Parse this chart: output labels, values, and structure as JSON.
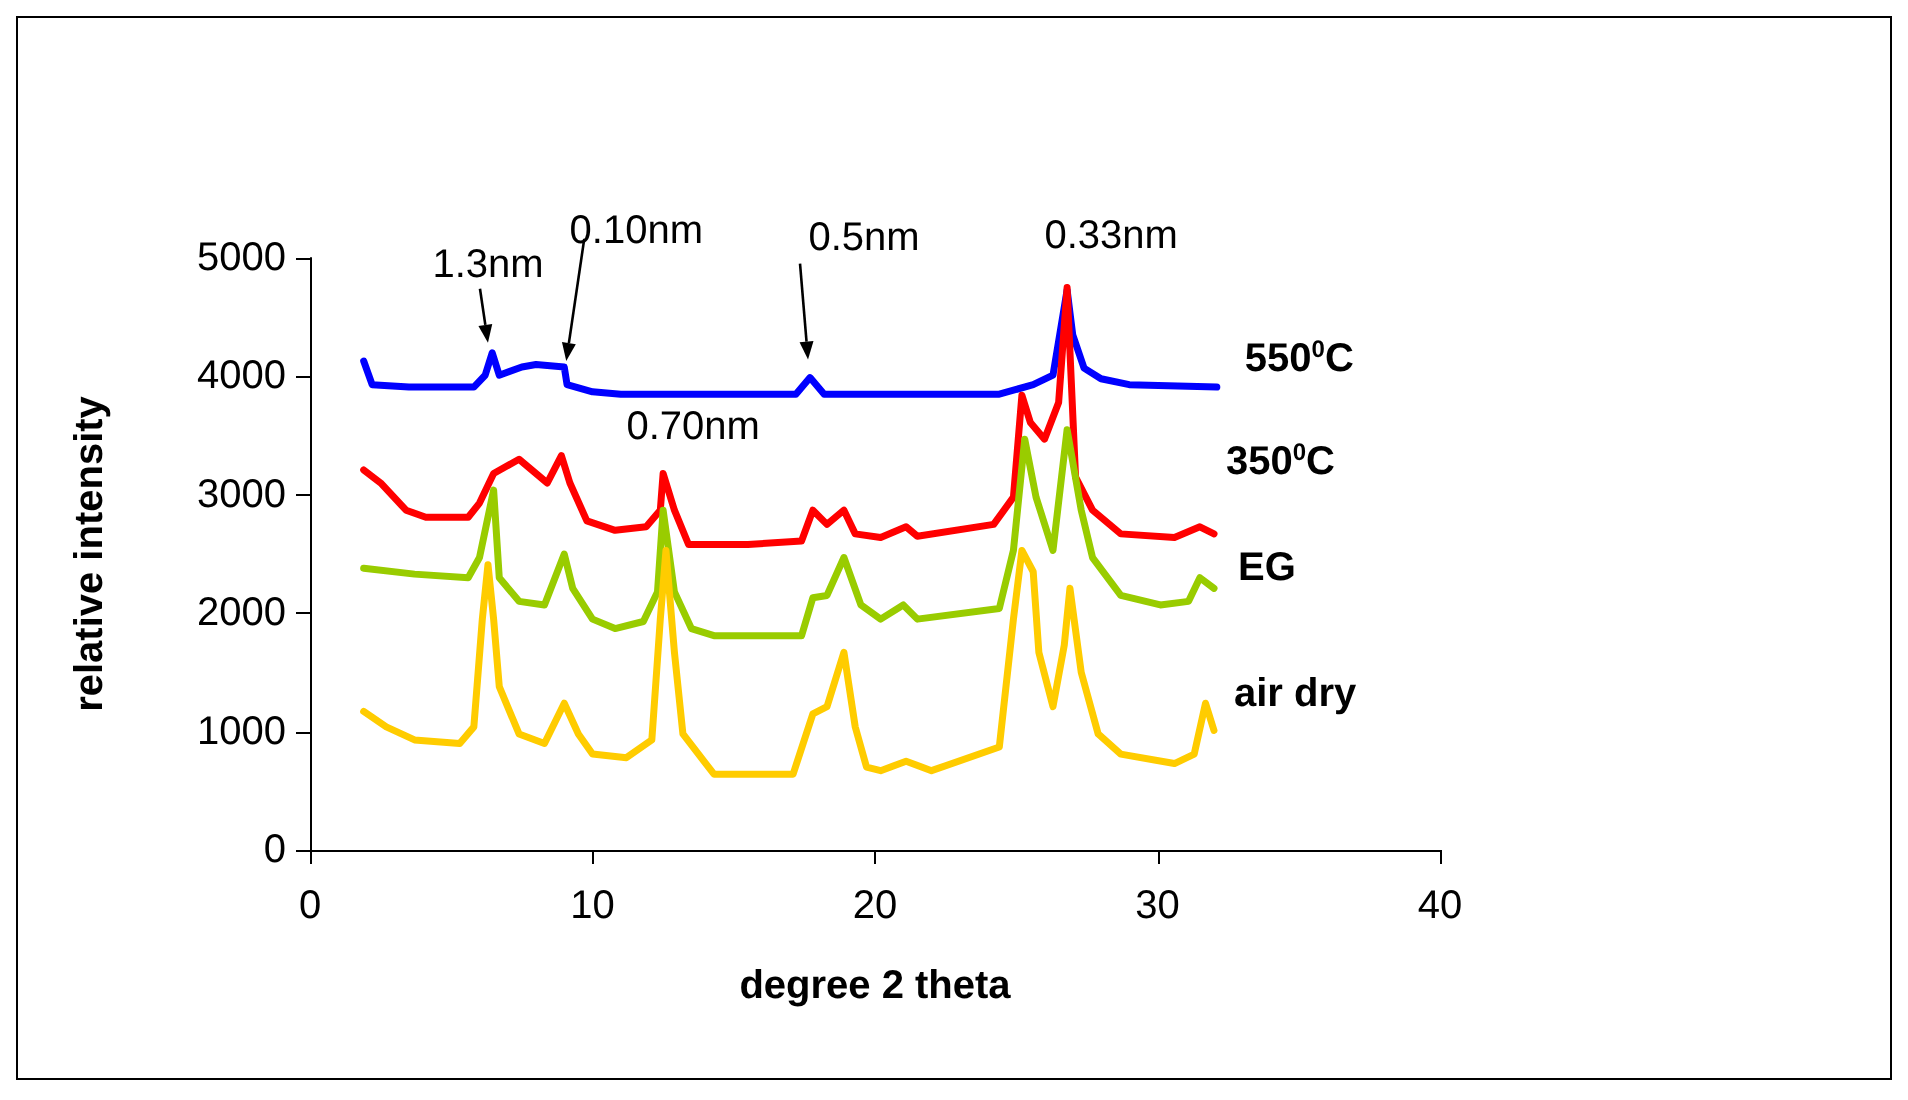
{
  "chart_data": {
    "type": "line",
    "xlabel": "degree 2 theta",
    "ylabel": "relative intensity",
    "xlim": [
      0,
      40
    ],
    "xticks": [
      0,
      10,
      20,
      30,
      40
    ],
    "ylim": [
      0,
      5000
    ],
    "yticks": [
      0,
      1000,
      2000,
      3000,
      4000,
      5000
    ],
    "grid": false,
    "legend": false,
    "marker": "none",
    "line_style": "solid",
    "annotations": [
      {
        "text": "1.3nm",
        "x": 6.3,
        "y": 4200
      },
      {
        "text": "0.10nm",
        "x": 9.0,
        "y": 4080
      },
      {
        "text": "0.5nm",
        "x": 17.7,
        "y": 3990
      },
      {
        "text": "0.33nm",
        "x": 26.8,
        "y": 4730
      },
      {
        "text": "0.70nm",
        "x": 12.5,
        "y": 3180
      }
    ],
    "series": [
      {
        "name": "550$^{0}$C",
        "color": "#0000ff",
        "x": [
          1.9,
          2.2,
          3.5,
          5.8,
          6.2,
          6.45,
          6.7,
          7.5,
          8.0,
          9.0,
          9.1,
          10.0,
          11.0,
          17.2,
          17.7,
          18.2,
          20.0,
          24.4,
          25.6,
          26.3,
          26.8,
          27.0,
          27.4,
          28.0,
          29.0,
          32.1
        ],
        "values": [
          4130,
          3930,
          3910,
          3910,
          4010,
          4200,
          4010,
          4080,
          4100,
          4080,
          3930,
          3870,
          3850,
          3850,
          3990,
          3850,
          3850,
          3850,
          3930,
          4010,
          4730,
          4350,
          4070,
          3980,
          3930,
          3910
        ]
      },
      {
        "name": "350$^{0}$C",
        "color": "#ff0000",
        "x": [
          1.9,
          2.5,
          3.4,
          4.1,
          5.6,
          6.0,
          6.5,
          7.4,
          8.4,
          8.9,
          9.2,
          9.8,
          10.8,
          11.9,
          12.4,
          12.5,
          12.9,
          13.4,
          15.5,
          17.4,
          17.8,
          18.3,
          18.9,
          19.3,
          20.2,
          21.1,
          21.5,
          24.2,
          24.9,
          25.2,
          25.5,
          26.0,
          26.5,
          26.8,
          27.1,
          27.7,
          28.7,
          30.6,
          31.5,
          32.0
        ],
        "values": [
          3210,
          3100,
          2870,
          2810,
          2810,
          2930,
          3180,
          3300,
          3100,
          3330,
          3100,
          2780,
          2700,
          2730,
          2870,
          3180,
          2870,
          2580,
          2580,
          2610,
          2870,
          2750,
          2870,
          2670,
          2640,
          2730,
          2650,
          2750,
          2980,
          3840,
          3610,
          3470,
          3780,
          4750,
          3150,
          2870,
          2670,
          2640,
          2730,
          2670
        ]
      },
      {
        "name": "EG",
        "color": "#99cc00",
        "x": [
          1.9,
          3.7,
          5.6,
          6.0,
          6.5,
          6.7,
          7.4,
          8.3,
          9.0,
          9.3,
          10.0,
          10.8,
          11.8,
          12.3,
          12.5,
          12.9,
          13.5,
          14.3,
          17.4,
          17.8,
          18.3,
          18.9,
          19.5,
          20.2,
          21.0,
          21.5,
          24.4,
          24.9,
          25.3,
          25.7,
          26.3,
          26.8,
          27.3,
          27.7,
          28.7,
          30.1,
          31.1,
          31.5,
          32.0
        ],
        "values": [
          2380,
          2330,
          2300,
          2470,
          3040,
          2300,
          2100,
          2070,
          2500,
          2210,
          1950,
          1870,
          1930,
          2180,
          2870,
          2180,
          1870,
          1810,
          1810,
          2130,
          2150,
          2470,
          2070,
          1950,
          2070,
          1950,
          2040,
          2530,
          3470,
          2980,
          2530,
          3550,
          2870,
          2470,
          2150,
          2070,
          2100,
          2300,
          2210
        ]
      },
      {
        "name": "air dry",
        "color": "#ffcc00",
        "x": [
          1.9,
          2.7,
          3.7,
          5.3,
          5.8,
          6.1,
          6.3,
          6.5,
          6.7,
          7.4,
          8.3,
          9.0,
          9.5,
          10.0,
          11.2,
          12.1,
          12.4,
          12.6,
          12.9,
          13.2,
          14.3,
          17.1,
          17.8,
          18.3,
          18.9,
          19.3,
          19.7,
          20.2,
          21.1,
          22.0,
          24.4,
          24.9,
          25.2,
          25.6,
          25.8,
          26.3,
          26.7,
          26.9,
          27.3,
          27.9,
          28.7,
          30.6,
          31.3,
          31.7,
          32.0
        ],
        "values": [
          1170,
          1040,
          930,
          900,
          1040,
          1950,
          2410,
          1950,
          1380,
          980,
          900,
          1240,
          980,
          810,
          780,
          930,
          1950,
          2530,
          1670,
          980,
          640,
          640,
          1150,
          1210,
          1670,
          1040,
          700,
          670,
          750,
          670,
          870,
          1950,
          2530,
          2350,
          1670,
          1210,
          1730,
          2210,
          1500,
          980,
          810,
          730,
          810,
          1240,
          1010
        ]
      }
    ]
  }
}
